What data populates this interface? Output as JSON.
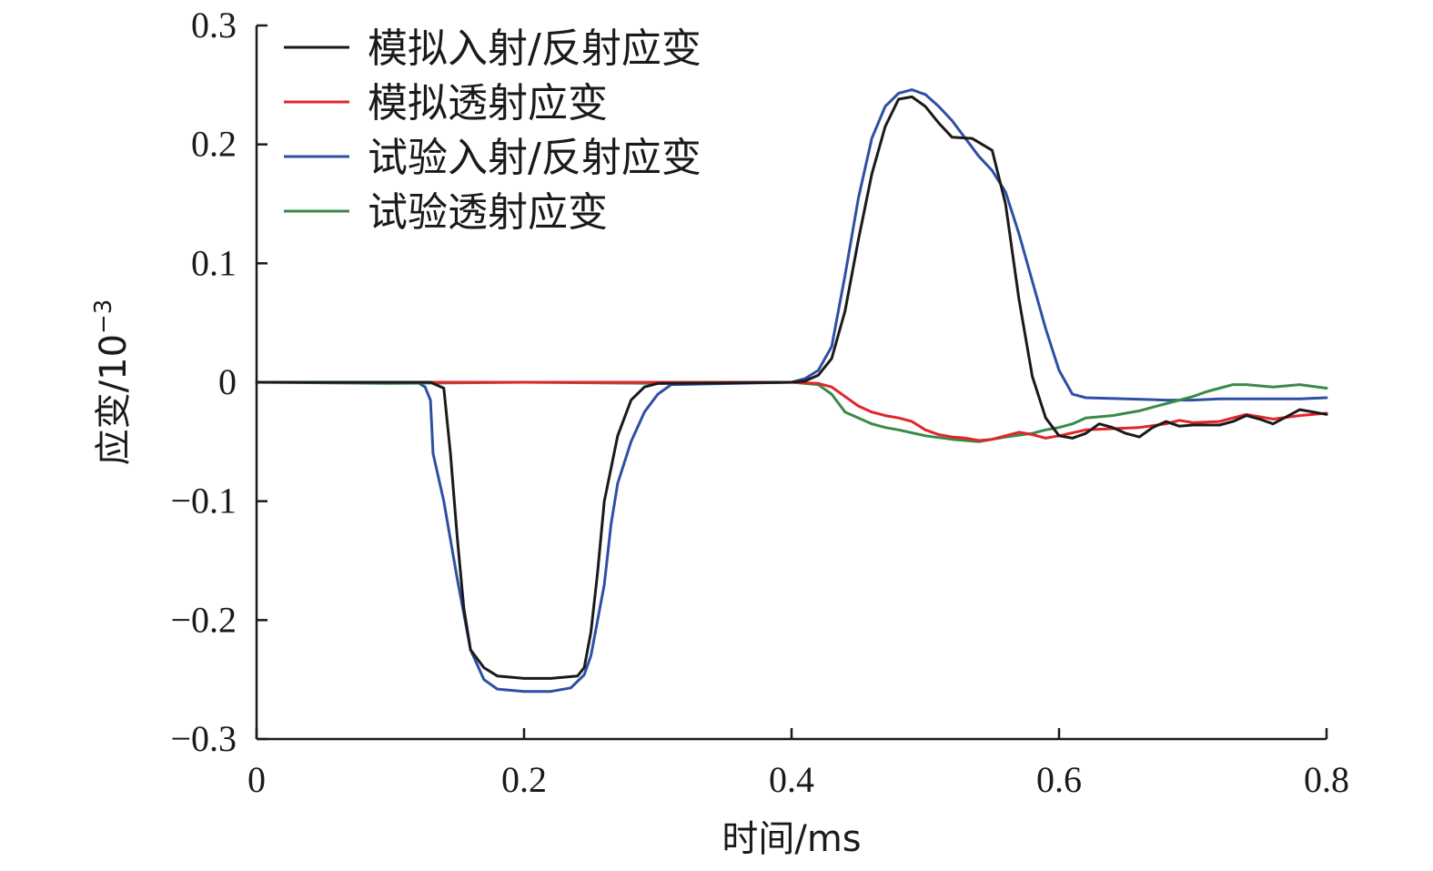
{
  "chart_data": {
    "type": "line",
    "title": "",
    "xlabel": "时间/ms",
    "ylabel": "应变/10",
    "ylabel_exponent": "−3",
    "xlim": [
      0,
      0.8
    ],
    "ylim": [
      -0.3,
      0.3
    ],
    "x_ticks": [
      0,
      0.2,
      0.4,
      0.6,
      0.8
    ],
    "x_tick_labels": [
      "0",
      "0.2",
      "0.4",
      "0.6",
      "0.8"
    ],
    "y_ticks": [
      0.3,
      0.2,
      0.1,
      0,
      -0.1,
      -0.2,
      -0.3
    ],
    "y_tick_labels": [
      "0.3",
      "0.2",
      "0.1",
      "0",
      "−0.1",
      "−0.2",
      "−0.3"
    ],
    "grid": false,
    "legend_position": "top-left",
    "series": [
      {
        "name": "模拟入射/反射应变",
        "color": "#1a1a1a",
        "points": [
          [
            0,
            0
          ],
          [
            0.13,
            0
          ],
          [
            0.14,
            -0.005
          ],
          [
            0.145,
            -0.06
          ],
          [
            0.15,
            -0.13
          ],
          [
            0.155,
            -0.19
          ],
          [
            0.16,
            -0.225
          ],
          [
            0.17,
            -0.24
          ],
          [
            0.18,
            -0.247
          ],
          [
            0.2,
            -0.249
          ],
          [
            0.22,
            -0.249
          ],
          [
            0.24,
            -0.247
          ],
          [
            0.245,
            -0.24
          ],
          [
            0.25,
            -0.21
          ],
          [
            0.255,
            -0.16
          ],
          [
            0.26,
            -0.1
          ],
          [
            0.27,
            -0.045
          ],
          [
            0.28,
            -0.015
          ],
          [
            0.29,
            -0.004
          ],
          [
            0.3,
            -0.001
          ],
          [
            0.4,
            0
          ],
          [
            0.41,
            0.001
          ],
          [
            0.42,
            0.006
          ],
          [
            0.43,
            0.02
          ],
          [
            0.44,
            0.06
          ],
          [
            0.45,
            0.12
          ],
          [
            0.46,
            0.175
          ],
          [
            0.47,
            0.215
          ],
          [
            0.48,
            0.238
          ],
          [
            0.49,
            0.24
          ],
          [
            0.5,
            0.232
          ],
          [
            0.51,
            0.218
          ],
          [
            0.52,
            0.206
          ],
          [
            0.535,
            0.205
          ],
          [
            0.55,
            0.195
          ],
          [
            0.56,
            0.15
          ],
          [
            0.57,
            0.07
          ],
          [
            0.58,
            0.005
          ],
          [
            0.59,
            -0.03
          ],
          [
            0.6,
            -0.045
          ],
          [
            0.61,
            -0.047
          ],
          [
            0.62,
            -0.043
          ],
          [
            0.63,
            -0.035
          ],
          [
            0.64,
            -0.038
          ],
          [
            0.65,
            -0.043
          ],
          [
            0.66,
            -0.046
          ],
          [
            0.67,
            -0.038
          ],
          [
            0.68,
            -0.033
          ],
          [
            0.69,
            -0.037
          ],
          [
            0.7,
            -0.036
          ],
          [
            0.72,
            -0.036
          ],
          [
            0.73,
            -0.033
          ],
          [
            0.74,
            -0.028
          ],
          [
            0.75,
            -0.031
          ],
          [
            0.76,
            -0.035
          ],
          [
            0.77,
            -0.029
          ],
          [
            0.78,
            -0.023
          ],
          [
            0.79,
            -0.025
          ],
          [
            0.8,
            -0.027
          ]
        ]
      },
      {
        "name": "模拟透射应变",
        "color": "#e0262b",
        "points": [
          [
            0,
            0
          ],
          [
            0.4,
            0
          ],
          [
            0.42,
            -0.001
          ],
          [
            0.43,
            -0.004
          ],
          [
            0.44,
            -0.012
          ],
          [
            0.45,
            -0.02
          ],
          [
            0.46,
            -0.025
          ],
          [
            0.47,
            -0.028
          ],
          [
            0.48,
            -0.03
          ],
          [
            0.49,
            -0.033
          ],
          [
            0.5,
            -0.04
          ],
          [
            0.51,
            -0.044
          ],
          [
            0.52,
            -0.046
          ],
          [
            0.53,
            -0.047
          ],
          [
            0.54,
            -0.049
          ],
          [
            0.55,
            -0.048
          ],
          [
            0.56,
            -0.045
          ],
          [
            0.57,
            -0.042
          ],
          [
            0.58,
            -0.044
          ],
          [
            0.59,
            -0.047
          ],
          [
            0.6,
            -0.045
          ],
          [
            0.62,
            -0.04
          ],
          [
            0.64,
            -0.039
          ],
          [
            0.66,
            -0.038
          ],
          [
            0.68,
            -0.035
          ],
          [
            0.69,
            -0.032
          ],
          [
            0.7,
            -0.034
          ],
          [
            0.72,
            -0.033
          ],
          [
            0.74,
            -0.027
          ],
          [
            0.76,
            -0.031
          ],
          [
            0.78,
            -0.028
          ],
          [
            0.8,
            -0.026
          ]
        ]
      },
      {
        "name": "试验入射/反射应变",
        "color": "#2e4fa3",
        "points": [
          [
            0,
            0
          ],
          [
            0.12,
            0
          ],
          [
            0.126,
            -0.004
          ],
          [
            0.13,
            -0.015
          ],
          [
            0.132,
            -0.06
          ],
          [
            0.14,
            -0.1
          ],
          [
            0.15,
            -0.165
          ],
          [
            0.16,
            -0.225
          ],
          [
            0.17,
            -0.25
          ],
          [
            0.18,
            -0.258
          ],
          [
            0.2,
            -0.26
          ],
          [
            0.22,
            -0.26
          ],
          [
            0.235,
            -0.257
          ],
          [
            0.245,
            -0.246
          ],
          [
            0.25,
            -0.23
          ],
          [
            0.26,
            -0.17
          ],
          [
            0.265,
            -0.12
          ],
          [
            0.27,
            -0.085
          ],
          [
            0.28,
            -0.05
          ],
          [
            0.29,
            -0.025
          ],
          [
            0.3,
            -0.01
          ],
          [
            0.31,
            -0.002
          ],
          [
            0.4,
            0
          ],
          [
            0.41,
            0.003
          ],
          [
            0.42,
            0.01
          ],
          [
            0.43,
            0.03
          ],
          [
            0.44,
            0.09
          ],
          [
            0.45,
            0.155
          ],
          [
            0.46,
            0.205
          ],
          [
            0.47,
            0.232
          ],
          [
            0.48,
            0.243
          ],
          [
            0.49,
            0.246
          ],
          [
            0.5,
            0.242
          ],
          [
            0.51,
            0.232
          ],
          [
            0.52,
            0.22
          ],
          [
            0.53,
            0.205
          ],
          [
            0.54,
            0.19
          ],
          [
            0.55,
            0.178
          ],
          [
            0.56,
            0.16
          ],
          [
            0.57,
            0.125
          ],
          [
            0.58,
            0.085
          ],
          [
            0.59,
            0.045
          ],
          [
            0.6,
            0.01
          ],
          [
            0.61,
            -0.01
          ],
          [
            0.62,
            -0.013
          ],
          [
            0.65,
            -0.014
          ],
          [
            0.68,
            -0.015
          ],
          [
            0.7,
            -0.015
          ],
          [
            0.72,
            -0.014
          ],
          [
            0.75,
            -0.014
          ],
          [
            0.78,
            -0.014
          ],
          [
            0.8,
            -0.013
          ]
        ]
      },
      {
        "name": "试验透射应变",
        "color": "#3a8a48",
        "points": [
          [
            0,
            0
          ],
          [
            0.1,
            -0.001
          ],
          [
            0.2,
            0
          ],
          [
            0.3,
            -0.001
          ],
          [
            0.4,
            0
          ],
          [
            0.42,
            -0.002
          ],
          [
            0.43,
            -0.01
          ],
          [
            0.44,
            -0.025
          ],
          [
            0.45,
            -0.03
          ],
          [
            0.46,
            -0.035
          ],
          [
            0.47,
            -0.038
          ],
          [
            0.48,
            -0.04
          ],
          [
            0.5,
            -0.045
          ],
          [
            0.52,
            -0.048
          ],
          [
            0.54,
            -0.05
          ],
          [
            0.56,
            -0.046
          ],
          [
            0.58,
            -0.043
          ],
          [
            0.59,
            -0.04
          ],
          [
            0.6,
            -0.038
          ],
          [
            0.61,
            -0.035
          ],
          [
            0.62,
            -0.03
          ],
          [
            0.64,
            -0.028
          ],
          [
            0.66,
            -0.024
          ],
          [
            0.68,
            -0.018
          ],
          [
            0.7,
            -0.012
          ],
          [
            0.71,
            -0.008
          ],
          [
            0.72,
            -0.005
          ],
          [
            0.73,
            -0.002
          ],
          [
            0.74,
            -0.002
          ],
          [
            0.76,
            -0.004
          ],
          [
            0.78,
            -0.002
          ],
          [
            0.8,
            -0.005
          ]
        ]
      }
    ]
  }
}
